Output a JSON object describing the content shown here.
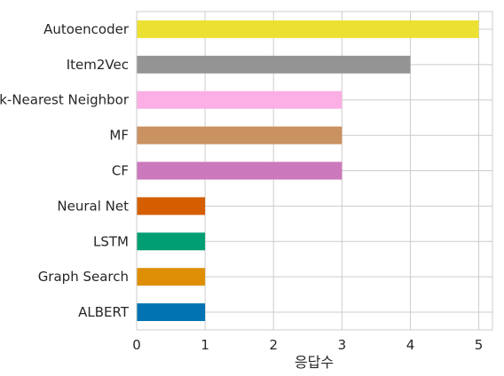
{
  "chart_data": {
    "type": "bar",
    "orientation": "horizontal",
    "categories": [
      "ALBERT",
      "Graph Search",
      "LSTM",
      "Neural Net",
      "CF",
      "MF",
      "k-Nearest Neighbor",
      "Item2Vec",
      "Autoencoder"
    ],
    "values": [
      1,
      1,
      1,
      1,
      3,
      3,
      3,
      4,
      5
    ],
    "colors": [
      "#0173b2",
      "#de8f05",
      "#029e73",
      "#d55e00",
      "#cc78bc",
      "#ca9161",
      "#fbafe4",
      "#949494",
      "#ece133"
    ],
    "xlabel": "응답수",
    "ylabel": "",
    "xlim": [
      0,
      5.2
    ],
    "xticks": [
      0,
      1,
      2,
      3,
      4,
      5
    ],
    "grid": true,
    "legend": "none"
  }
}
